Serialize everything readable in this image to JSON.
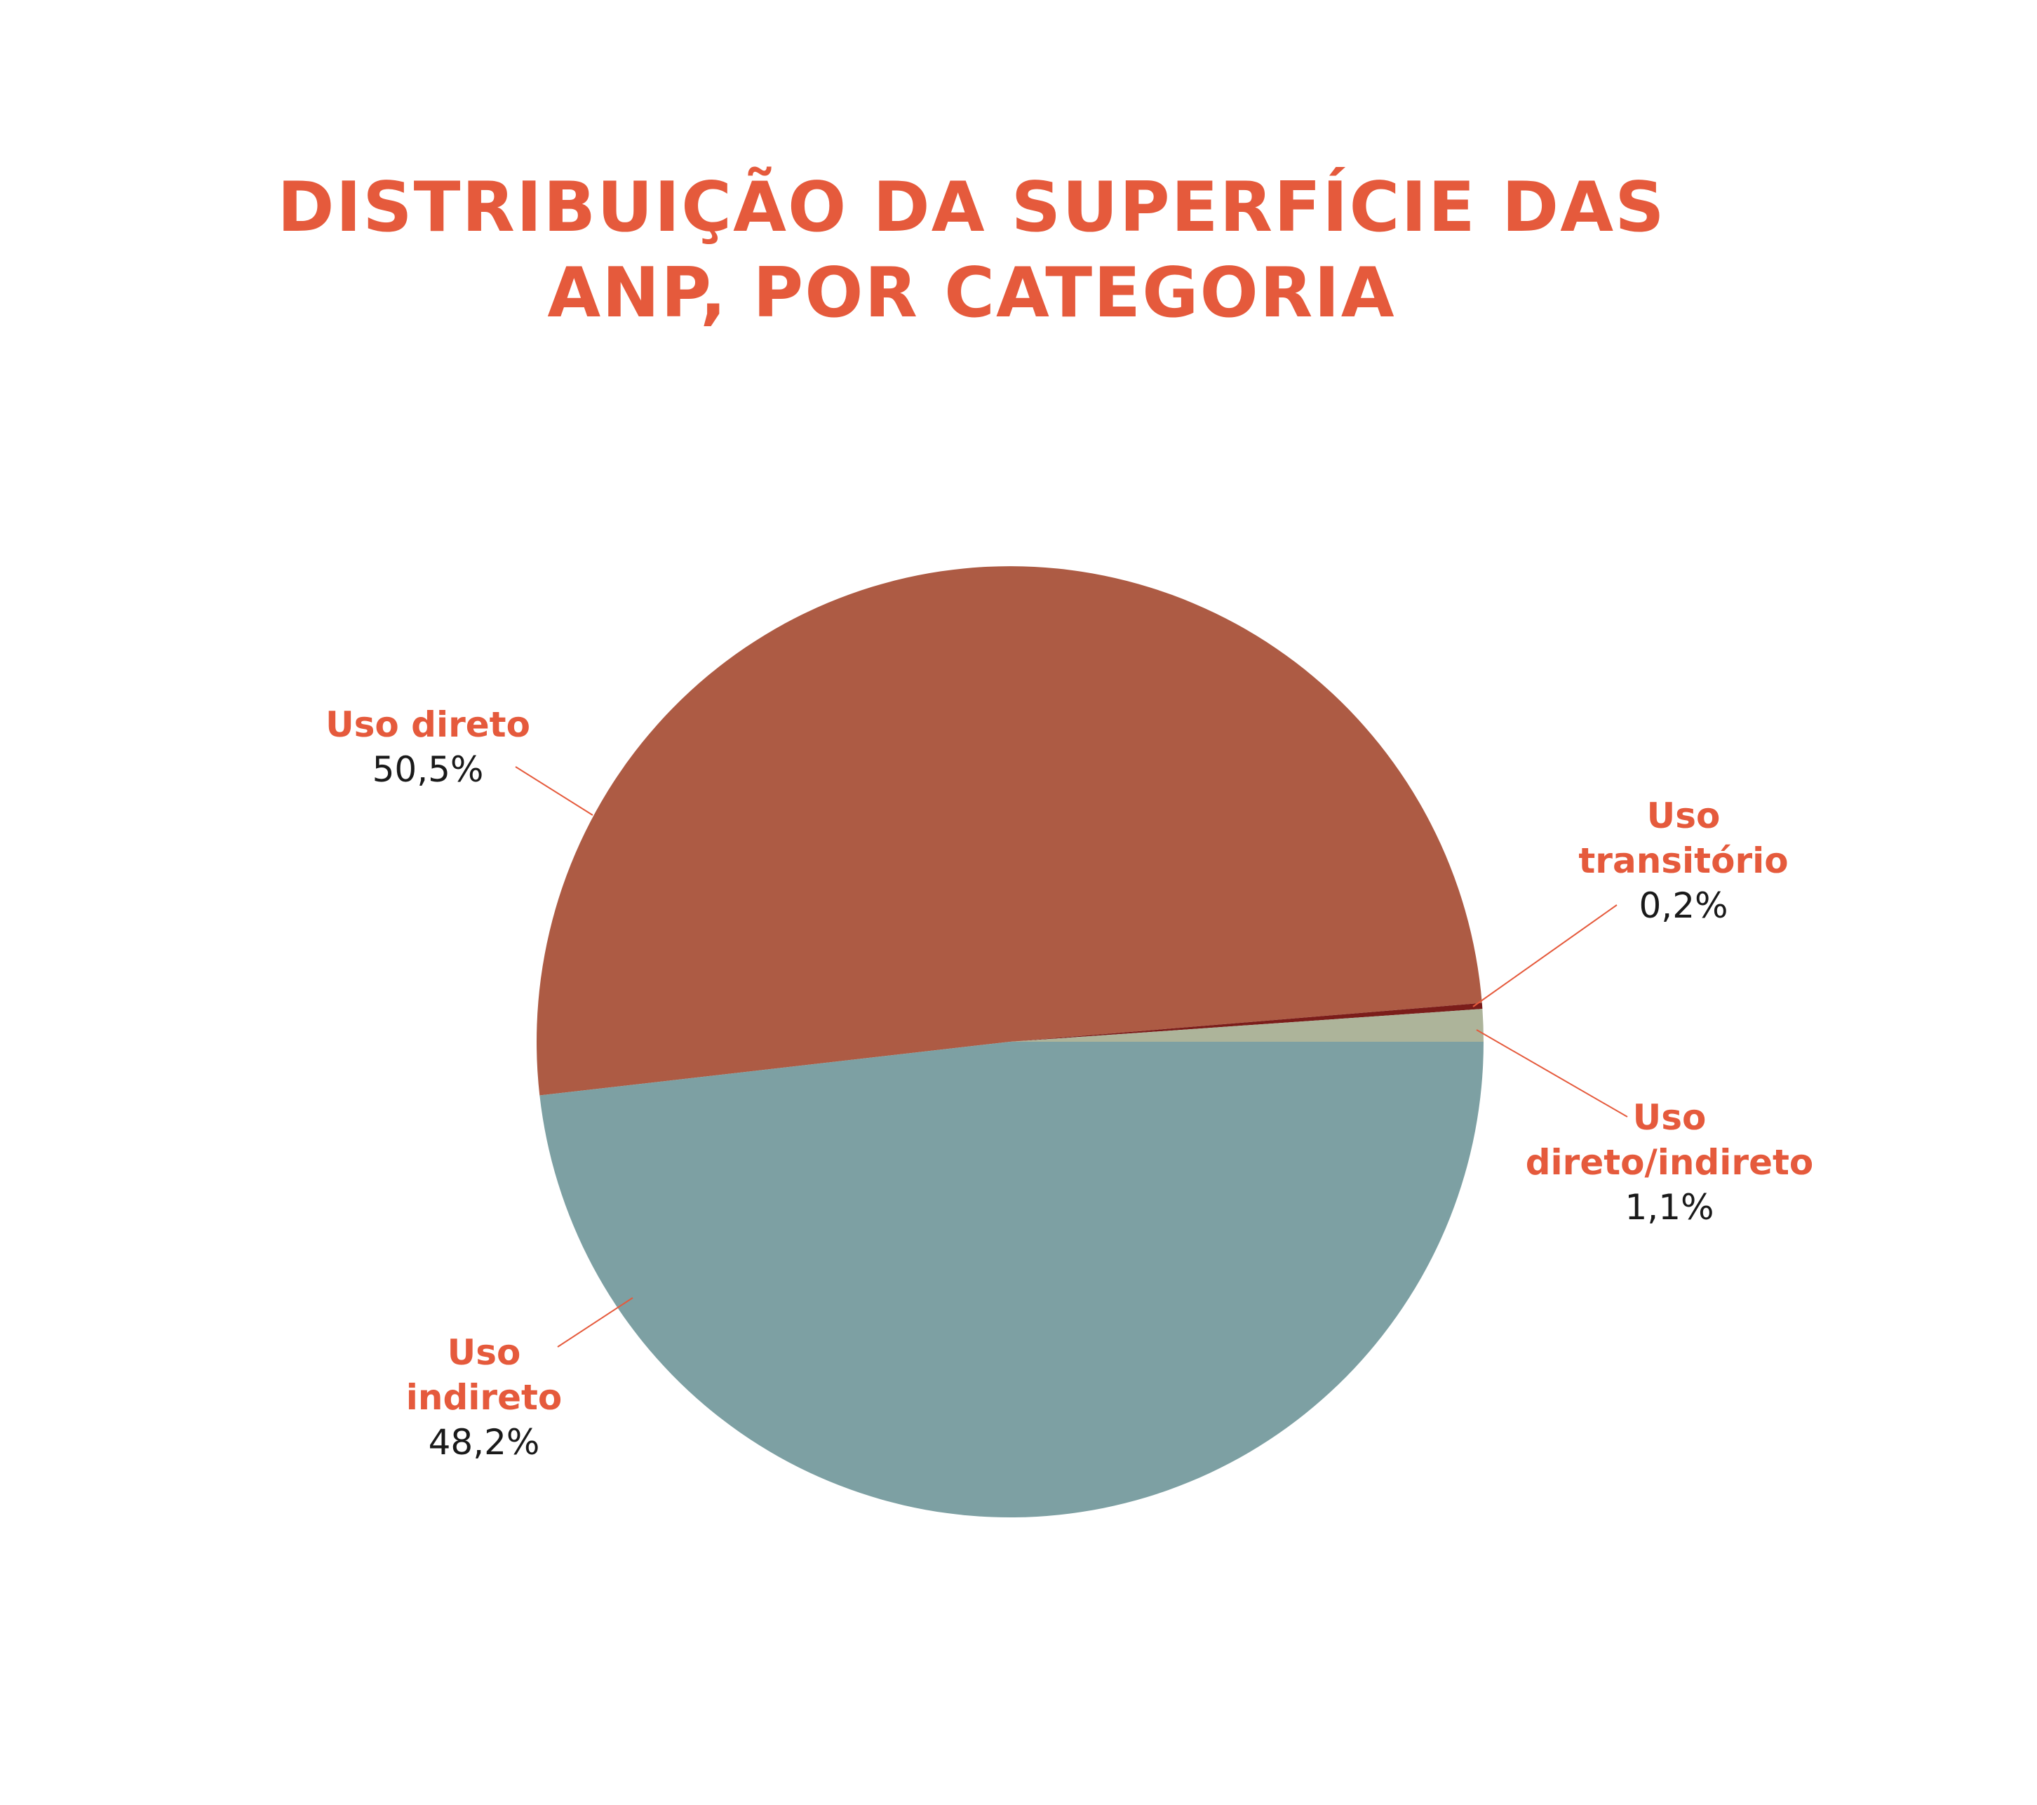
{
  "chart_data": {
    "type": "pie",
    "title_lines": [
      "DISTRIBUIÇÃO DA SUPERFÍCIE DAS",
      "ANP, POR CATEGORIA"
    ],
    "slices": [
      {
        "label_lines": [
          "Uso direto"
        ],
        "value": 50.5,
        "value_label": "50,5%",
        "color": "#ad5b44"
      },
      {
        "label_lines": [
          "Uso",
          "transitório"
        ],
        "value": 0.2,
        "value_label": "0,2%",
        "color": "#7b1d1a"
      },
      {
        "label_lines": [
          "Uso",
          "direto/indireto"
        ],
        "value": 1.1,
        "value_label": "1,1%",
        "color": "#adb49a"
      },
      {
        "label_lines": [
          "Uso",
          "indireto"
        ],
        "value": 48.2,
        "value_label": "48,2%",
        "color": "#7da0a3"
      }
    ],
    "label_color": "#e55a3c",
    "value_color": "#1a1a1a",
    "legend": "none",
    "leader_lines": true
  }
}
